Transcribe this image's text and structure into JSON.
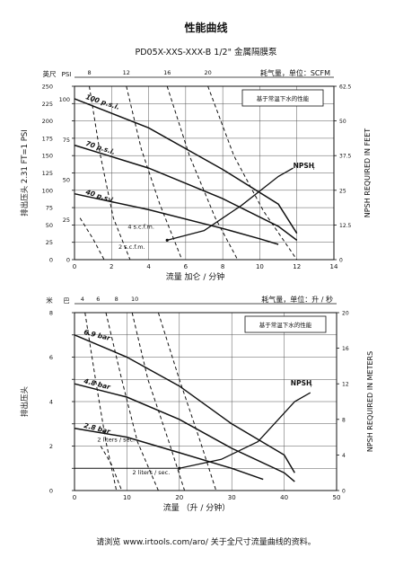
{
  "page": {
    "title": "性能曲线",
    "subtitle": "PD05X-XXS-XXX-B  1/2\"  金属隔膜泵",
    "footer": "请浏览 www.irtools.com/aro/ 关于全尺寸流量曲线的资料。"
  },
  "chart_data": [
    {
      "id": "chart-top",
      "type": "line",
      "xlabel": "流量 加仑 / 分钟",
      "ylabel": "排出压头 2.31 FT=1 PSI",
      "ylabel_top": "英尺",
      "ylabel_secondary": "PSI",
      "right_label": "NPSH REQUIRED IN FEET",
      "air_label": "耗气量，单位：SCFM",
      "note": "基于常温下水的性能",
      "npsh_label": "NPSH",
      "npsh_sub": "r",
      "xlim": [
        0,
        14
      ],
      "ylim": [
        0,
        250
      ],
      "x_ticks": [
        "0",
        "2",
        "4",
        "6",
        "8",
        "10",
        "12",
        "14"
      ],
      "y_ticks": [
        "0",
        "25",
        "50",
        "75",
        "100",
        "125",
        "150",
        "175",
        "200",
        "225",
        "250"
      ],
      "y_tick_labels": [
        "0",
        "",
        "",
        "",
        "",
        "",
        "",
        "",
        "",
        "",
        ""
      ],
      "psi_tick_labels": [
        "0",
        "25",
        "50",
        "75",
        "100"
      ],
      "psi_ticks": [
        0,
        57.75,
        115.5,
        173.25,
        231
      ],
      "right_axis": {
        "lim": [
          0,
          62.5
        ],
        "ticks": [
          0,
          12.5,
          25,
          37.5,
          50,
          62.5
        ],
        "tick_labels": [
          "0",
          "12.5",
          "25",
          "37.5",
          "50",
          "62.5"
        ]
      },
      "air_ticks": [
        {
          "label": "8",
          "x": 0.8
        },
        {
          "label": "12",
          "x": 2.8
        },
        {
          "label": "16",
          "x": 5.0
        },
        {
          "label": "20",
          "x": 7.2
        }
      ],
      "pressure_curves": [
        {
          "name": "100 p.s.i.",
          "points": [
            [
              0,
              232
            ],
            [
              4,
              190
            ],
            [
              8,
              130
            ],
            [
              11,
              80
            ],
            [
              12,
              38
            ]
          ]
        },
        {
          "name": "70 p.s.i.",
          "points": [
            [
              0,
              165
            ],
            [
              4,
              132
            ],
            [
              8,
              88
            ],
            [
              11,
              48
            ],
            [
              12,
              28
            ]
          ]
        },
        {
          "name": "40 p.s.i.",
          "points": [
            [
              0,
              95
            ],
            [
              4,
              72
            ],
            [
              8,
              45
            ],
            [
              10,
              30
            ],
            [
              11,
              22
            ]
          ]
        }
      ],
      "air_curves": [
        {
          "name": "4 s.c.f.m.",
          "points": [
            [
              0.8,
              250
            ],
            [
              1.4,
              150
            ],
            [
              2.1,
              60
            ],
            [
              3.0,
              0
            ]
          ]
        },
        {
          "name": "",
          "points": [
            [
              2.8,
              250
            ],
            [
              3.6,
              160
            ],
            [
              4.6,
              80
            ],
            [
              5.8,
              0
            ]
          ]
        },
        {
          "name": "",
          "points": [
            [
              5.0,
              250
            ],
            [
              6.2,
              150
            ],
            [
              7.6,
              60
            ],
            [
              8.8,
              0
            ]
          ]
        },
        {
          "name": "",
          "points": [
            [
              7.2,
              250
            ],
            [
              8.6,
              150
            ],
            [
              10.2,
              70
            ],
            [
              12.0,
              0
            ]
          ]
        },
        {
          "name": "2 s.c.f.m.",
          "points": [
            [
              0.3,
              60
            ],
            [
              1.0,
              30
            ],
            [
              1.6,
              0
            ]
          ]
        }
      ],
      "npsh_curve": {
        "points": [
          [
            5,
            28
          ],
          [
            7,
            42
          ],
          [
            9,
            78
          ],
          [
            11,
            120
          ],
          [
            11.8,
            132
          ]
        ]
      },
      "markers": [
        [
          5,
          28
        ]
      ]
    },
    {
      "id": "chart-bottom",
      "type": "line",
      "xlabel": "流量 （升 / 分钟）",
      "ylabel": "排出压头",
      "ylabel_top": "米",
      "ylabel_secondary": "巴",
      "right_label": "NPSH REQUIRED IN METERS",
      "air_label": "耗气量，单位：升 / 秒",
      "note": "基于常温下水的性能",
      "npsh_label": "NPSH",
      "npsh_sub": "r",
      "xlim": [
        0,
        50
      ],
      "ylim": [
        0,
        80
      ],
      "x_ticks": [
        "0",
        "10",
        "20",
        "30",
        "40",
        "50"
      ],
      "y_ticks": [
        "0",
        "10",
        "20",
        "30",
        "40",
        "50",
        "60",
        "70",
        "80"
      ],
      "y_tick_labels": [
        "0",
        "",
        "2",
        "",
        "4",
        "",
        "6",
        "",
        "8"
      ],
      "right_axis": {
        "lim": [
          0,
          20
        ],
        "ticks": [
          0,
          4,
          8,
          12,
          16,
          20
        ],
        "tick_labels": [
          "0",
          "4",
          "8",
          "12",
          "16",
          "20"
        ]
      },
      "air_ticks": [
        {
          "label": "4",
          "x": 1.5
        },
        {
          "label": "6",
          "x": 4.5
        },
        {
          "label": "8",
          "x": 8.0
        },
        {
          "label": "10",
          "x": 11.5
        }
      ],
      "pressure_curves": [
        {
          "name": "6.9 bar",
          "points": [
            [
              0,
              70
            ],
            [
              10,
              60
            ],
            [
              20,
              47
            ],
            [
              30,
              30
            ],
            [
              40,
              16
            ],
            [
              42,
              8
            ]
          ]
        },
        {
          "name": "4.8 bar",
          "points": [
            [
              0,
              48
            ],
            [
              10,
              42
            ],
            [
              20,
              32
            ],
            [
              30,
              19
            ],
            [
              40,
              8
            ],
            [
              42,
              4
            ]
          ]
        },
        {
          "name": "2.8 bar",
          "points": [
            [
              0,
              28
            ],
            [
              10,
              24
            ],
            [
              20,
              17
            ],
            [
              30,
              10
            ],
            [
              36,
              5
            ]
          ]
        }
      ],
      "air_curves": [
        {
          "name": "2 liters / sec.",
          "points": [
            [
              2,
              80
            ],
            [
              4,
              50
            ],
            [
              6,
              22
            ],
            [
              8,
              0
            ]
          ]
        },
        {
          "name": "",
          "points": [
            [
              6,
              80
            ],
            [
              9,
              50
            ],
            [
              12,
              22
            ],
            [
              16,
              0
            ]
          ]
        },
        {
          "name": "",
          "points": [
            [
              11,
              80
            ],
            [
              14,
              50
            ],
            [
              18,
              22
            ],
            [
              21,
              0
            ]
          ]
        },
        {
          "name": "",
          "points": [
            [
              16,
              80
            ],
            [
              20,
              50
            ],
            [
              24,
              22
            ],
            [
              27,
              0
            ]
          ]
        },
        {
          "name": "2 liters / sec.",
          "points": [
            [
              5,
              20
            ],
            [
              7,
              12
            ],
            [
              9,
              0
            ]
          ]
        }
      ],
      "npsh_curve": {
        "points": [
          [
            20,
            10
          ],
          [
            28,
            14
          ],
          [
            35,
            22
          ],
          [
            42,
            40
          ],
          [
            45,
            44
          ]
        ]
      },
      "flat_line": {
        "points": [
          [
            0,
            10
          ],
          [
            20,
            10
          ]
        ]
      },
      "markers": [
        [
          20,
          10
        ]
      ]
    }
  ]
}
